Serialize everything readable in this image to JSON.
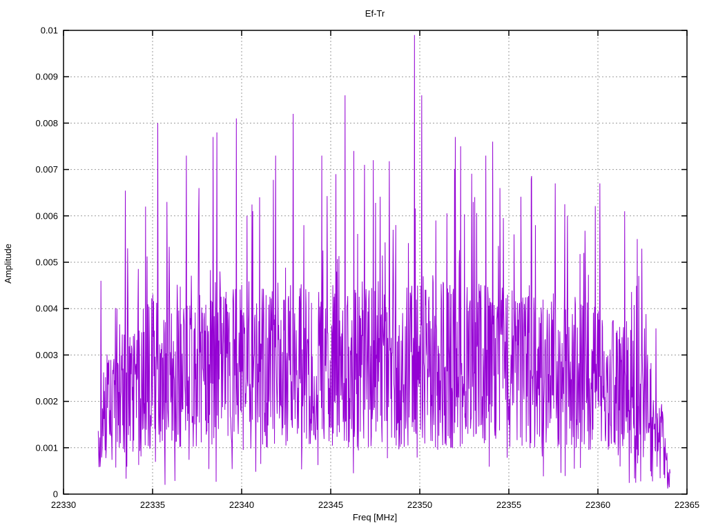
{
  "window": {
    "background": "#ffffff"
  },
  "chart_data": {
    "type": "line",
    "title": "Ef-Tr",
    "xlabel": "Freq [MHz]",
    "ylabel": "Amplitude",
    "xlim": [
      22330,
      22365
    ],
    "ylim": [
      0,
      0.01
    ],
    "xticks": [
      22330,
      22335,
      22340,
      22345,
      22350,
      22355,
      22360,
      22365
    ],
    "xtick_labels": [
      "22330",
      "22335",
      "22340",
      "22345",
      "22350",
      "22355",
      "22360",
      "22365"
    ],
    "yticks": [
      0,
      0.001,
      0.002,
      0.003,
      0.004,
      0.005,
      0.006,
      0.007,
      0.008,
      0.009,
      0.01
    ],
    "ytick_labels": [
      "0",
      "0.001",
      "0.002",
      "0.003",
      "0.004",
      "0.005",
      "0.006",
      "0.007",
      "0.008",
      "0.009",
      "0.01"
    ],
    "grid": true,
    "legend_position": "none",
    "line_color": "#9400d3",
    "grid_color": "#999999",
    "axis_color": "#000000",
    "series": [
      {
        "name": "Ef-Tr",
        "style": "noisy-spectrum-line",
        "x_start": 22331.95,
        "x_end": 22364.05,
        "n_points": 1500,
        "noise_seed": 20231,
        "baseline_range": [
          0.001,
          0.0046
        ],
        "spike_probability": 0.1,
        "spike_extra_range": [
          0.0004,
          0.0038
        ],
        "spike_shape": 2.0,
        "dip_probability": 0.07,
        "dip_factor_range": [
          0.2,
          0.7
        ],
        "clamp": [
          0.00012,
          0.0095
        ],
        "envelope": [
          [
            22331.95,
            0.5
          ],
          [
            22332.6,
            0.72
          ],
          [
            22333.6,
            0.85
          ],
          [
            22335.0,
            0.95
          ],
          [
            22337.0,
            1.0
          ],
          [
            22348.0,
            1.0
          ],
          [
            22353.0,
            1.0
          ],
          [
            22358.0,
            0.95
          ],
          [
            22360.0,
            0.9
          ],
          [
            22361.5,
            0.85
          ],
          [
            22362.6,
            0.72
          ],
          [
            22363.4,
            0.55
          ],
          [
            22363.8,
            0.3
          ],
          [
            22364.05,
            0.1
          ]
        ],
        "peaks": [
          [
            22332.1,
            0.0046
          ],
          [
            22333.0,
            0.004
          ],
          [
            22333.6,
            0.0053
          ],
          [
            22334.6,
            0.0062
          ],
          [
            22335.3,
            0.008
          ],
          [
            22335.8,
            0.0063
          ],
          [
            22336.9,
            0.0073
          ],
          [
            22337.6,
            0.0066
          ],
          [
            22338.4,
            0.0077
          ],
          [
            22338.6,
            0.0078
          ],
          [
            22339.7,
            0.0081
          ],
          [
            22340.3,
            0.006
          ],
          [
            22341.0,
            0.0064
          ],
          [
            22341.9,
            0.0073
          ],
          [
            22342.9,
            0.0082
          ],
          [
            22343.5,
            0.0058
          ],
          [
            22344.5,
            0.0073
          ],
          [
            22345.3,
            0.0069
          ],
          [
            22345.8,
            0.0086
          ],
          [
            22346.3,
            0.0074
          ],
          [
            22346.9,
            0.0071
          ],
          [
            22347.4,
            0.0072
          ],
          [
            22348.5,
            0.0057
          ],
          [
            22349.7,
            0.0099
          ],
          [
            22350.1,
            0.0086
          ],
          [
            22350.9,
            0.0059
          ],
          [
            22352.0,
            0.0077
          ],
          [
            22352.3,
            0.0075
          ],
          [
            22353.0,
            0.0063
          ],
          [
            22353.7,
            0.0073
          ],
          [
            22354.1,
            0.0076
          ],
          [
            22354.5,
            0.0066
          ],
          [
            22355.3,
            0.0056
          ],
          [
            22356.5,
            0.0058
          ],
          [
            22357.6,
            0.0067
          ],
          [
            22358.3,
            0.006
          ],
          [
            22359.2,
            0.0052
          ],
          [
            22360.1,
            0.0067
          ],
          [
            22361.5,
            0.0061
          ],
          [
            22362.2,
            0.0055
          ]
        ]
      }
    ]
  }
}
